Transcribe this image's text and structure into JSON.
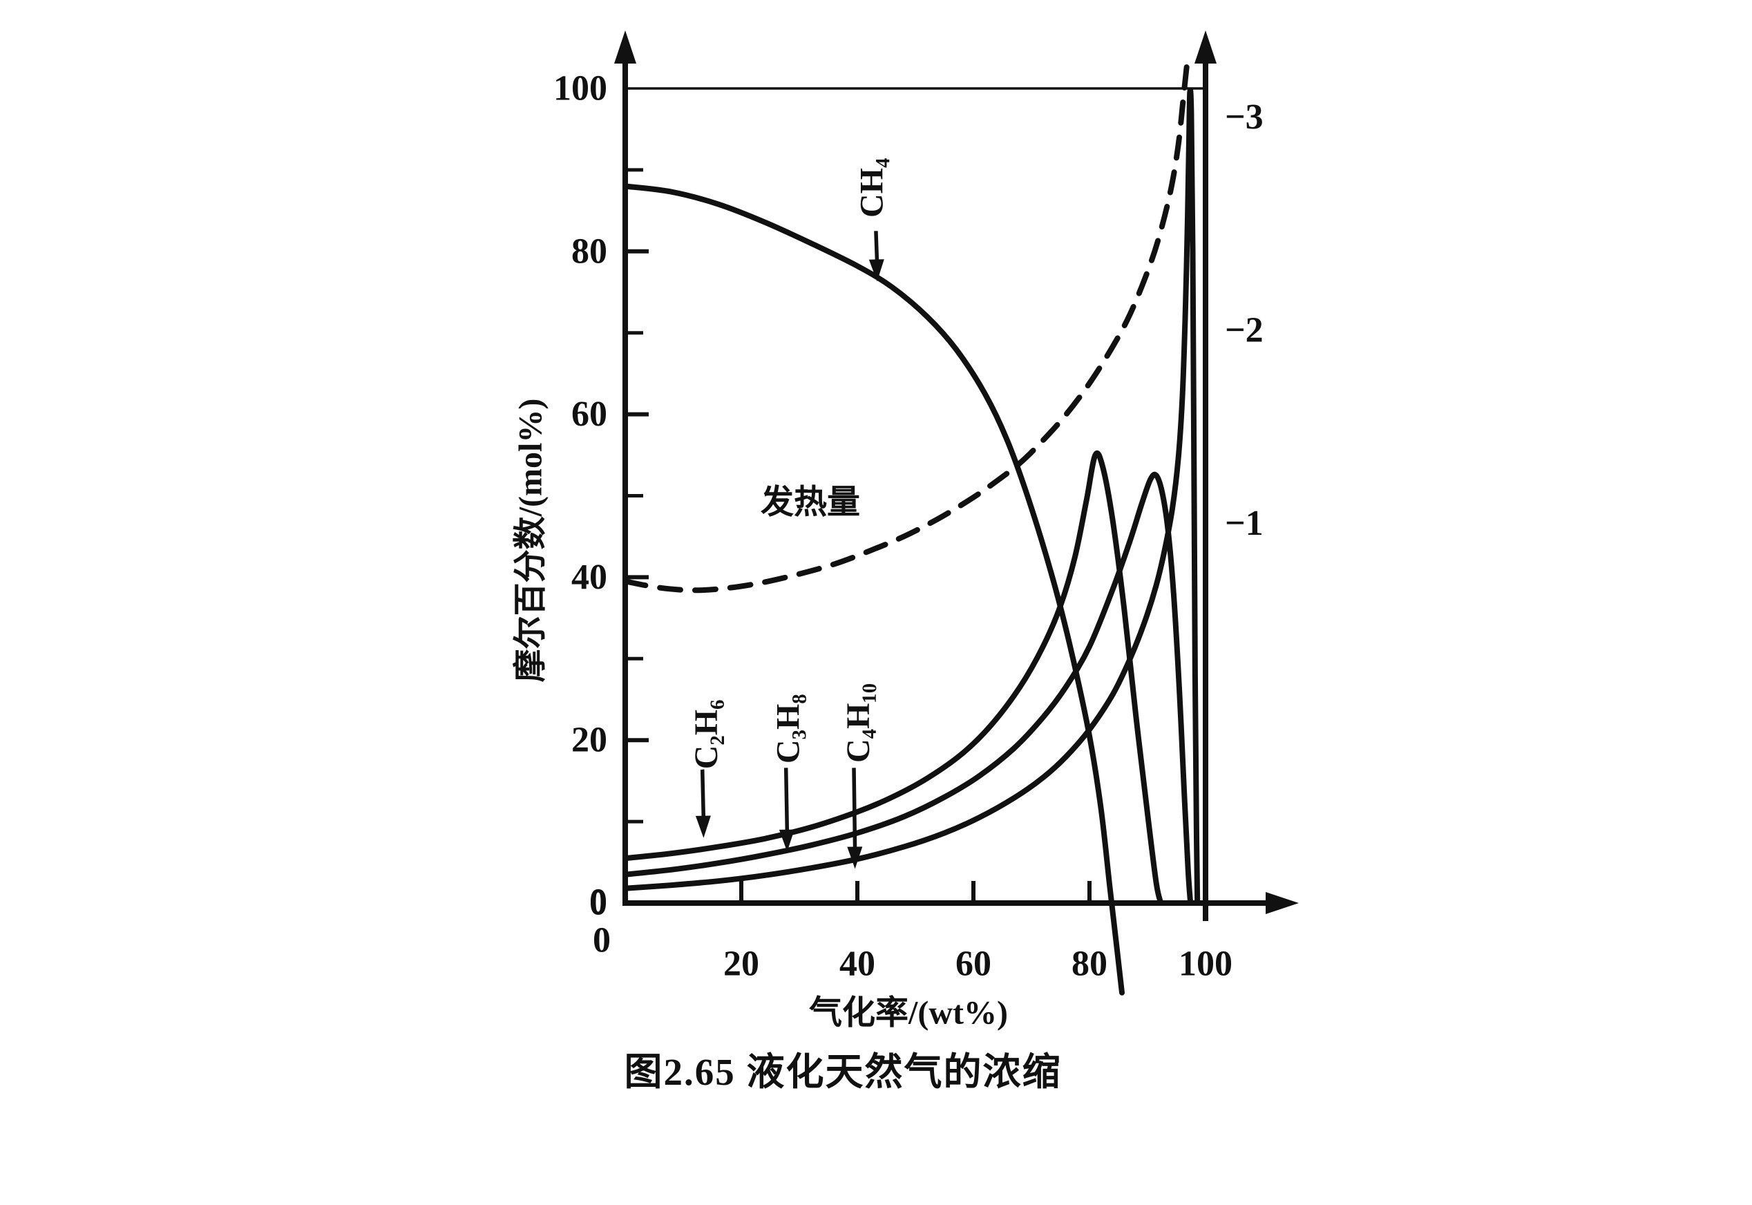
{
  "figure": {
    "caption": "图2.65 液化天然气的浓缩",
    "background_color": "#ffffff",
    "ink_color": "#111111"
  },
  "chart_data": {
    "type": "line",
    "title": "",
    "xlabel": "气化率/(wt%)",
    "ylabel": "摩尔百分数/(mol%)",
    "xlim": [
      0,
      100
    ],
    "ylim": [
      0,
      100
    ],
    "grid": false,
    "x_ticks": [
      0,
      20,
      40,
      60,
      80,
      100
    ],
    "y_ticks": [
      0,
      20,
      40,
      60,
      80,
      100
    ],
    "y_minor_ticks": [
      10,
      30,
      50,
      70,
      90
    ],
    "right_axis_labels": [
      {
        "text": "−3",
        "y": 96.5
      },
      {
        "text": "−2",
        "y": 70.3
      },
      {
        "text": "−1",
        "y": 46.6
      }
    ],
    "origin_labels": {
      "y_zero": "0",
      "x_zero": "0"
    },
    "series": [
      {
        "id": "ch4",
        "name": "CH₄",
        "style": "solid",
        "points": [
          [
            0,
            88
          ],
          [
            8,
            87.3
          ],
          [
            16,
            85.8
          ],
          [
            24,
            83.6
          ],
          [
            32,
            81
          ],
          [
            40,
            78.2
          ],
          [
            46,
            75.6
          ],
          [
            52,
            72
          ],
          [
            57,
            68
          ],
          [
            62,
            62.5
          ],
          [
            66,
            56.5
          ],
          [
            70,
            48.5
          ],
          [
            74,
            39
          ],
          [
            77,
            30.5
          ],
          [
            80,
            20.5
          ],
          [
            82,
            11.5
          ],
          [
            83.5,
            2
          ],
          [
            84.8,
            -6
          ],
          [
            85.6,
            -11
          ]
        ]
      },
      {
        "id": "heating-value",
        "name": "发热量",
        "style": "dashed",
        "points": [
          [
            0,
            39.5
          ],
          [
            6,
            38.7
          ],
          [
            12,
            38.4
          ],
          [
            18,
            38.7
          ],
          [
            24,
            39.4
          ],
          [
            30,
            40.4
          ],
          [
            36,
            41.6
          ],
          [
            42,
            43.2
          ],
          [
            48,
            45
          ],
          [
            54,
            47.2
          ],
          [
            60,
            49.8
          ],
          [
            64,
            51.8
          ],
          [
            68,
            54
          ],
          [
            72,
            56.8
          ],
          [
            76,
            60
          ],
          [
            80,
            63.8
          ],
          [
            84,
            68.3
          ],
          [
            87,
            72.3
          ],
          [
            90,
            77.5
          ],
          [
            92,
            81.8
          ],
          [
            94,
            87.5
          ],
          [
            95.3,
            93
          ],
          [
            96.2,
            99
          ],
          [
            96.8,
            103
          ]
        ]
      },
      {
        "id": "c2h6",
        "name": "C₂H₆",
        "style": "solid",
        "points": [
          [
            0,
            5.5
          ],
          [
            8,
            6.1
          ],
          [
            16,
            6.9
          ],
          [
            24,
            7.9
          ],
          [
            32,
            9.3
          ],
          [
            40,
            11.2
          ],
          [
            46,
            13
          ],
          [
            52,
            15.3
          ],
          [
            58,
            18.3
          ],
          [
            63,
            21.8
          ],
          [
            68,
            26.5
          ],
          [
            72,
            31.5
          ],
          [
            75,
            36.5
          ],
          [
            77.5,
            42.5
          ],
          [
            79.5,
            49.5
          ],
          [
            81,
            55
          ],
          [
            82.3,
            53.5
          ],
          [
            84,
            47
          ],
          [
            86,
            36
          ],
          [
            88,
            23
          ],
          [
            90,
            11
          ],
          [
            91.5,
            2.5
          ],
          [
            92.3,
            0
          ]
        ]
      },
      {
        "id": "c3h8",
        "name": "C₃H₈",
        "style": "solid",
        "points": [
          [
            0,
            3.5
          ],
          [
            8,
            4.1
          ],
          [
            16,
            4.9
          ],
          [
            24,
            5.9
          ],
          [
            32,
            7.1
          ],
          [
            40,
            8.6
          ],
          [
            48,
            10.6
          ],
          [
            55,
            13
          ],
          [
            61,
            15.6
          ],
          [
            67,
            19
          ],
          [
            72,
            22.8
          ],
          [
            76,
            26.6
          ],
          [
            80,
            31.5
          ],
          [
            84,
            38.5
          ],
          [
            87,
            44.5
          ],
          [
            89,
            49
          ],
          [
            90.5,
            52
          ],
          [
            91.5,
            52.5
          ],
          [
            92.5,
            50.5
          ],
          [
            93.5,
            46
          ],
          [
            94.5,
            38
          ],
          [
            95.5,
            26
          ],
          [
            96.3,
            14
          ],
          [
            97,
            4
          ],
          [
            97.4,
            0
          ]
        ]
      },
      {
        "id": "c4h10",
        "name": "C₄H₁₀",
        "style": "solid",
        "points": [
          [
            0,
            1.8
          ],
          [
            8,
            2.2
          ],
          [
            16,
            2.7
          ],
          [
            24,
            3.4
          ],
          [
            32,
            4.3
          ],
          [
            40,
            5.4
          ],
          [
            48,
            6.9
          ],
          [
            55,
            8.6
          ],
          [
            61,
            10.5
          ],
          [
            67,
            12.9
          ],
          [
            72,
            15.4
          ],
          [
            76,
            18
          ],
          [
            80,
            21.3
          ],
          [
            84,
            25.6
          ],
          [
            87,
            30
          ],
          [
            89.5,
            34.5
          ],
          [
            91.5,
            39
          ],
          [
            93,
            43.5
          ],
          [
            94.3,
            48.5
          ],
          [
            95.3,
            54.5
          ],
          [
            96,
            62
          ],
          [
            96.5,
            72
          ],
          [
            96.9,
            84
          ],
          [
            97.15,
            94
          ],
          [
            97.3,
            99.5
          ],
          [
            97.55,
            97
          ],
          [
            97.8,
            80
          ],
          [
            98,
            55
          ],
          [
            98.2,
            28
          ],
          [
            98.45,
            8
          ],
          [
            98.6,
            0
          ]
        ]
      }
    ],
    "annotations": [
      {
        "id": "ch4-label",
        "text": "CH₄",
        "x": 42.5,
        "y": 87.8,
        "rotate": -90,
        "arrow": {
          "from": [
            43.2,
            82.5
          ],
          "to": [
            43.4,
            76.3
          ]
        }
      },
      {
        "id": "heating-value-label",
        "text": "发热量",
        "x": 31.9,
        "y": 49.2,
        "rotate": 0
      },
      {
        "id": "c2h6-label",
        "text": "C₂H₆",
        "x": 14.0,
        "y": 20.7,
        "rotate": -90,
        "arrow": {
          "from": [
            13.3,
            16.4
          ],
          "to": [
            13.5,
            8.0
          ]
        }
      },
      {
        "id": "c3h8-label",
        "text": "C₃H₈",
        "x": 28.1,
        "y": 21.4,
        "rotate": -90,
        "arrow": {
          "from": [
            27.7,
            16.6
          ],
          "to": [
            27.9,
            6.3
          ]
        }
      },
      {
        "id": "c4h10-label",
        "text": "C₄H₁₀",
        "x": 40.2,
        "y": 22.1,
        "rotate": -90,
        "arrow": {
          "from": [
            39.4,
            16.6
          ],
          "to": [
            39.6,
            4.2
          ]
        }
      }
    ]
  }
}
